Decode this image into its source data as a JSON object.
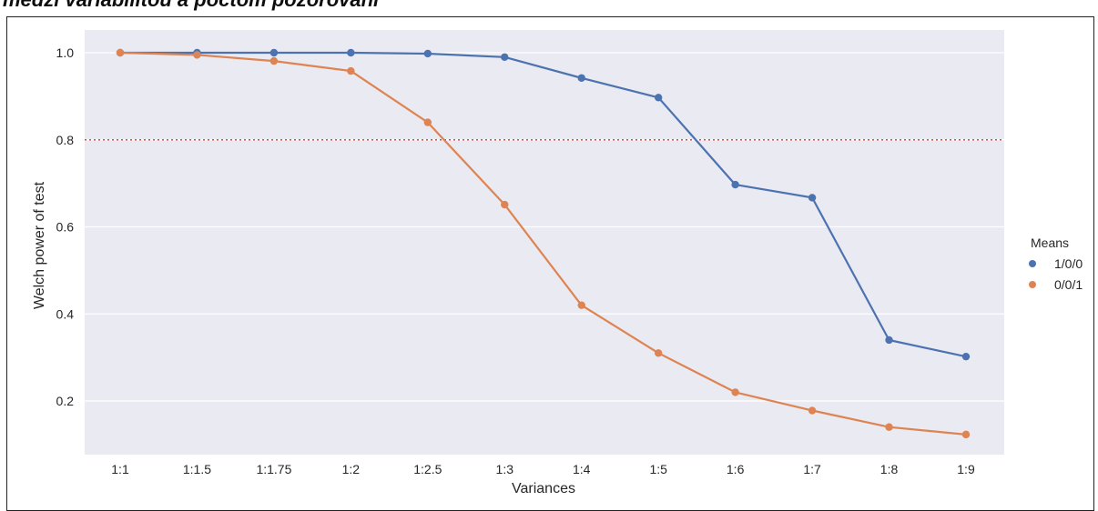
{
  "heading": "medzi variabilitou a počtom pozorovaní",
  "chart_data": {
    "type": "line",
    "title": "",
    "xlabel": "Variances",
    "ylabel": "Welch power of test",
    "categories": [
      "1:1",
      "1:1.5",
      "1:1.75",
      "1:2",
      "1:2.5",
      "1:3",
      "1:4",
      "1:5",
      "1:6",
      "1:7",
      "1:8",
      "1:9"
    ],
    "ylim": [
      0.08,
      1.05
    ],
    "yticks": [
      0.2,
      0.4,
      0.6,
      0.8,
      1.0
    ],
    "ytick_labels": [
      "0.2",
      "0.4",
      "0.6",
      "0.8",
      "1.0"
    ],
    "grid": true,
    "reference_line": {
      "y": 0.8,
      "style": "dotted",
      "color": "#e24a33"
    },
    "legend": {
      "title": "Means",
      "placement": "right"
    },
    "series": [
      {
        "name": "1/0/0",
        "color": "#4c72b0",
        "values": [
          1.0,
          1.0,
          1.0,
          1.0,
          0.998,
          0.99,
          0.942,
          0.897,
          0.697,
          0.667,
          0.34,
          0.302
        ]
      },
      {
        "name": "0/0/1",
        "color": "#dd8452",
        "values": [
          1.0,
          0.995,
          0.981,
          0.958,
          0.84,
          0.651,
          0.42,
          0.31,
          0.22,
          0.178,
          0.14,
          0.123
        ]
      }
    ],
    "background": "#eaeaf2"
  }
}
